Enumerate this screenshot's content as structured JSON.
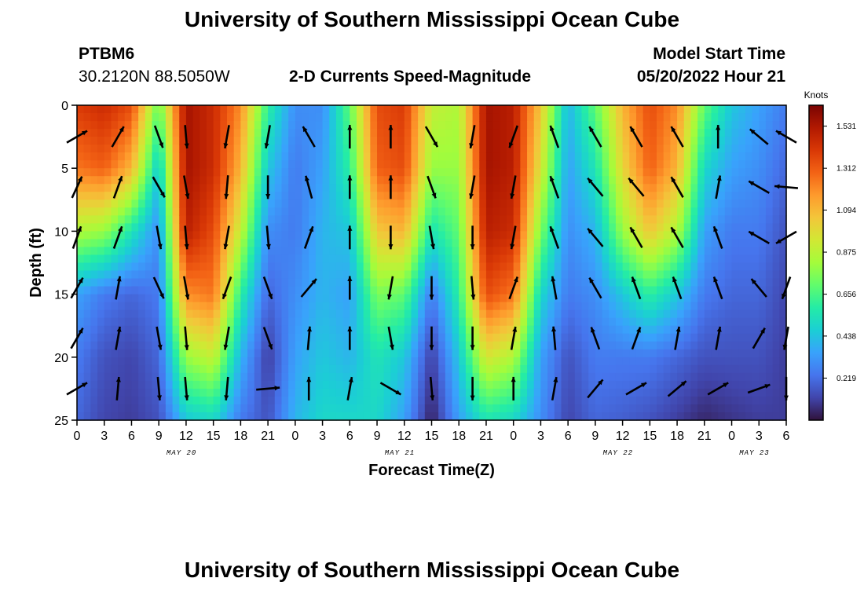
{
  "header": {
    "title": "University of Southern Mississippi Ocean Cube",
    "station_id": "PTBM6",
    "station_coords": "30.2120N  88.5050W",
    "subtitle": "2-D Currents Speed-Magnitude",
    "model_start_label": "Model Start Time",
    "model_start_value": "05/20/2022 Hour 21"
  },
  "footer": {
    "title": "University of Southern Mississippi Ocean Cube"
  },
  "chart_data": {
    "type": "heatmap",
    "title": "2-D Currents Speed-Magnitude",
    "xlabel": "Forecast Time(Z)",
    "ylabel": "Depth (ft)",
    "x_range_hours": [
      0,
      78
    ],
    "x_tick_step_hours": 3,
    "x_tick_labels": [
      "0",
      "3",
      "6",
      "9",
      "12",
      "15",
      "18",
      "21",
      "0",
      "3",
      "6",
      "9",
      "12",
      "15",
      "18",
      "21",
      "0",
      "3",
      "6",
      "9",
      "12",
      "15",
      "18",
      "21",
      "0",
      "3",
      "6"
    ],
    "date_labels": [
      {
        "label": "MAY 20",
        "hour": 11.5
      },
      {
        "label": "MAY 21",
        "hour": 35.5
      },
      {
        "label": "MAY 22",
        "hour": 59.5
      },
      {
        "label": "MAY 23",
        "hour": 74.5
      }
    ],
    "y_range_ft": [
      0,
      25
    ],
    "y_ticks": [
      0,
      5,
      10,
      15,
      20,
      25
    ],
    "colorbar": {
      "label": "Knots",
      "min": 0,
      "max": 1.64,
      "ticks": [
        "1.531",
        "1.312",
        "1.094",
        "0.875",
        "0.656",
        "0.438",
        "0.219"
      ],
      "tick_values": [
        1.531,
        1.312,
        1.094,
        0.875,
        0.656,
        0.438,
        0.219
      ],
      "colors": [
        "#30123b",
        "#4145ab",
        "#4675ed",
        "#39a2fc",
        "#1bcfd4",
        "#24eca6",
        "#61fc6c",
        "#a4fc3b",
        "#d1e834",
        "#f3c63a",
        "#fe9b2d",
        "#f36315",
        "#d93806",
        "#b11901",
        "#7a0403"
      ]
    },
    "speed_profiles_knots": {
      "hours": [
        0,
        3,
        6,
        9,
        12,
        15,
        18,
        21,
        24,
        27,
        30,
        33,
        36,
        39,
        42,
        45,
        48,
        51,
        54,
        57,
        60,
        63,
        66,
        69,
        72,
        75,
        78
      ],
      "depths_ft": [
        0,
        5,
        10,
        15,
        20,
        25
      ],
      "values": [
        [
          1.4,
          1.25,
          0.85,
          0.35,
          0.25,
          0.2
        ],
        [
          1.45,
          1.3,
          0.8,
          0.25,
          0.15,
          0.12
        ],
        [
          1.35,
          1.1,
          0.55,
          0.2,
          0.12,
          0.1
        ],
        [
          0.7,
          0.45,
          0.3,
          0.25,
          0.2,
          0.15
        ],
        [
          1.55,
          1.55,
          1.5,
          1.2,
          0.8,
          0.45
        ],
        [
          1.45,
          1.45,
          1.35,
          1.25,
          0.9,
          0.5
        ],
        [
          1.2,
          1.1,
          0.9,
          0.6,
          0.4,
          0.25
        ],
        [
          0.6,
          0.45,
          0.3,
          0.2,
          0.1,
          0.15
        ],
        [
          0.3,
          0.25,
          0.25,
          0.3,
          0.35,
          0.4
        ],
        [
          0.3,
          0.35,
          0.4,
          0.4,
          0.45,
          0.5
        ],
        [
          0.7,
          0.6,
          0.45,
          0.35,
          0.4,
          0.5
        ],
        [
          1.35,
          1.3,
          1.05,
          0.75,
          0.55,
          0.5
        ],
        [
          1.4,
          1.35,
          1.1,
          0.7,
          0.45,
          0.35
        ],
        [
          0.9,
          0.8,
          0.55,
          0.25,
          0.1,
          0.03
        ],
        [
          0.85,
          0.8,
          0.7,
          0.6,
          0.45,
          0.35
        ],
        [
          1.55,
          1.55,
          1.5,
          1.35,
          0.95,
          0.55
        ],
        [
          1.5,
          1.5,
          1.45,
          1.25,
          0.85,
          0.5
        ],
        [
          1.05,
          0.95,
          0.75,
          0.5,
          0.35,
          0.3
        ],
        [
          0.4,
          0.35,
          0.3,
          0.25,
          0.15,
          0.12
        ],
        [
          0.7,
          0.55,
          0.4,
          0.3,
          0.25,
          0.2
        ],
        [
          1.1,
          1.0,
          0.8,
          0.45,
          0.25,
          0.18
        ],
        [
          1.35,
          1.3,
          1.05,
          0.6,
          0.25,
          0.15
        ],
        [
          1.2,
          1.1,
          0.85,
          0.45,
          0.2,
          0.1
        ],
        [
          0.7,
          0.5,
          0.35,
          0.25,
          0.15,
          0.05
        ],
        [
          0.45,
          0.35,
          0.25,
          0.2,
          0.15,
          0.08
        ],
        [
          0.35,
          0.3,
          0.25,
          0.2,
          0.15,
          0.1
        ],
        [
          0.25,
          0.2,
          0.15,
          0.12,
          0.1,
          0.1
        ]
      ]
    },
    "vectors": {
      "hours": [
        0,
        4.5,
        9,
        12,
        16.5,
        21,
        25.5,
        30,
        34.5,
        39,
        43.5,
        48,
        52.5,
        57,
        61.5,
        66,
        70.5,
        75,
        78
      ],
      "depths_ft": [
        2.5,
        6.5,
        10.5,
        14.5,
        18.5,
        22.5
      ],
      "angles_deg": [
        [
          60,
          25,
          20,
          30,
          30,
          60
        ],
        [
          30,
          20,
          20,
          10,
          10,
          5
        ],
        [
          160,
          150,
          170,
          155,
          170,
          175
        ],
        [
          175,
          170,
          175,
          170,
          175,
          175
        ],
        [
          190,
          185,
          190,
          200,
          190,
          185
        ],
        [
          190,
          180,
          175,
          160,
          160,
          85
        ],
        [
          330,
          345,
          20,
          40,
          5,
          0
        ],
        [
          0,
          0,
          0,
          0,
          0,
          10
        ],
        [
          0,
          0,
          180,
          190,
          170,
          120
        ],
        [
          150,
          160,
          170,
          180,
          180,
          175
        ],
        [
          190,
          190,
          180,
          175,
          180,
          180
        ],
        [
          200,
          190,
          190,
          20,
          10,
          0
        ],
        [
          340,
          340,
          340,
          350,
          355,
          10
        ],
        [
          330,
          320,
          320,
          330,
          340,
          40
        ],
        [
          330,
          320,
          330,
          340,
          20,
          60
        ],
        [
          330,
          330,
          330,
          340,
          10,
          50
        ],
        [
          0,
          10,
          340,
          340,
          10,
          60
        ],
        [
          310,
          300,
          300,
          320,
          30,
          70
        ],
        [
          300,
          275,
          240,
          200,
          190,
          180
        ]
      ]
    }
  }
}
